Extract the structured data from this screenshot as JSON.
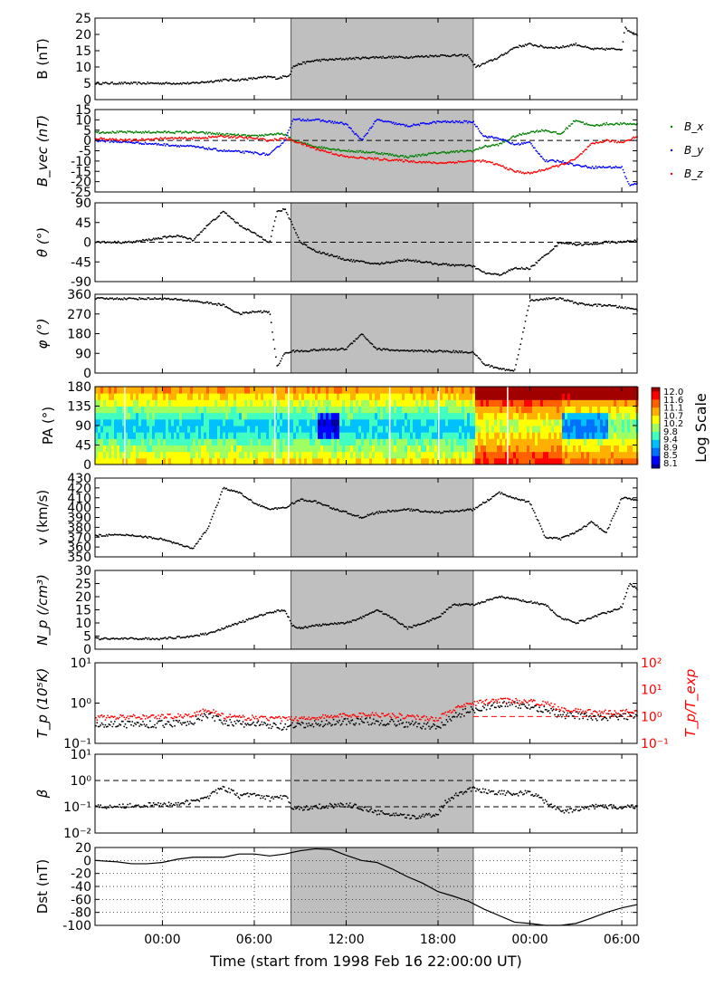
{
  "figure": {
    "xlabel": "Time (start from 1998 Feb 16 22:00:00 UT)",
    "x_start": "1998-02-16 22:00",
    "x_range_hours": [
      -2.4,
      33.0
    ],
    "x_ticks": [
      {
        "hours": 2,
        "label": "00:00"
      },
      {
        "hours": 8,
        "label": "06:00"
      },
      {
        "hours": 14,
        "label": "12:00"
      },
      {
        "hours": 20,
        "label": "18:00"
      },
      {
        "hours": 26,
        "label": "00:00"
      },
      {
        "hours": 32,
        "label": "06:00"
      }
    ],
    "shaded_interval_hours": [
      10.4,
      22.3
    ],
    "shade_color": "#bfbfbf"
  },
  "chart_data": [
    {
      "id": "B",
      "type": "scatter",
      "ylabel": "B (nT)",
      "ylim": [
        0,
        25
      ],
      "yticks": [
        0,
        5,
        10,
        15,
        20,
        25
      ],
      "series": [
        {
          "color": "#000000",
          "x": [
            -2.4,
            0,
            2,
            4,
            5,
            6,
            7,
            8,
            9,
            9.5,
            10.3,
            10.5,
            11,
            12,
            14,
            16,
            18,
            20,
            22,
            22.3,
            22.5,
            23,
            24,
            25,
            26,
            27,
            28,
            29,
            30,
            31,
            32,
            32.2,
            32.5,
            33
          ],
          "y": [
            5,
            5,
            5,
            5,
            5.5,
            6,
            6,
            6.5,
            7,
            6.5,
            7.5,
            10,
            11,
            12,
            12.5,
            13,
            13,
            13.5,
            13.5,
            11,
            10,
            11,
            13,
            16,
            17,
            16,
            16,
            17,
            15.5,
            15.5,
            15.5,
            22,
            21,
            20
          ]
        }
      ]
    },
    {
      "id": "Bvec",
      "type": "scatter",
      "ylabel": "B_vec (nT)",
      "ylim": [
        -25,
        15
      ],
      "yticks": [
        -25,
        -20,
        -15,
        -10,
        -5,
        0,
        5,
        10,
        15
      ],
      "zero_line": 0,
      "legend": "right",
      "series": [
        {
          "name": "B_x",
          "color": "#008000",
          "x": [
            -2.4,
            2,
            4,
            6,
            8,
            9,
            10,
            10.5,
            12,
            14,
            16,
            18,
            20,
            22.3,
            23,
            24,
            25,
            26,
            27,
            28,
            29,
            30,
            31,
            32,
            33
          ],
          "y": [
            4,
            4,
            4,
            3,
            2,
            3,
            3,
            0,
            -3,
            -5,
            -6,
            -8,
            -6,
            -5,
            -3,
            -2,
            2,
            4,
            5,
            3,
            10,
            7,
            8,
            8,
            8
          ]
        },
        {
          "name": "B_y",
          "color": "#0000ff",
          "x": [
            -2.4,
            0,
            2,
            4,
            6,
            8,
            9,
            10,
            10.5,
            12,
            14,
            15,
            16,
            18,
            20,
            22.3,
            23,
            24,
            25,
            26,
            27,
            28,
            29,
            30,
            31,
            32,
            32.5,
            33
          ],
          "y": [
            0,
            -1,
            -2,
            -3,
            -5,
            -6,
            -7,
            0,
            10,
            10,
            8,
            0,
            10,
            7,
            9,
            9,
            2,
            1,
            -2,
            -1,
            -10,
            -10,
            -12,
            -13,
            -13,
            -13,
            -22,
            -21
          ]
        },
        {
          "name": "B_z",
          "color": "#ff0000",
          "x": [
            -2.4,
            0,
            2,
            4,
            6,
            8,
            9,
            10,
            10.5,
            12,
            14,
            16,
            18,
            20,
            22.3,
            23,
            24,
            25,
            26,
            27,
            28,
            29,
            30,
            31,
            32,
            33
          ],
          "y": [
            1,
            0,
            1,
            1,
            2,
            1,
            0,
            1,
            0,
            -4,
            -8,
            -9,
            -10,
            -11,
            -10,
            -10,
            -12,
            -15,
            -16,
            -14,
            -12,
            -9,
            -2,
            0,
            -1,
            2
          ]
        }
      ]
    },
    {
      "id": "theta",
      "type": "scatter",
      "ylabel": "θ (°)",
      "ylim": [
        -90,
        90
      ],
      "yticks": [
        -90,
        -45,
        0,
        45,
        90
      ],
      "zero_line": 0,
      "series": [
        {
          "color": "#000000",
          "x": [
            -2.4,
            0,
            1,
            2,
            3,
            4,
            5,
            6,
            7,
            8,
            9,
            9.5,
            10,
            10.5,
            11,
            12,
            13,
            14,
            16,
            18,
            20,
            22.3,
            23,
            24,
            25,
            26,
            27,
            28,
            29,
            30,
            31,
            32,
            33
          ],
          "y": [
            0,
            0,
            5,
            10,
            15,
            5,
            40,
            70,
            40,
            20,
            0,
            70,
            75,
            40,
            0,
            -20,
            -30,
            -40,
            -50,
            -40,
            -50,
            -55,
            -70,
            -75,
            -60,
            -60,
            -30,
            0,
            -5,
            -5,
            0,
            0,
            5
          ]
        }
      ]
    },
    {
      "id": "phi",
      "type": "scatter",
      "ylabel": "φ (°)",
      "ylim": [
        0,
        360
      ],
      "yticks": [
        0,
        90,
        180,
        270,
        360
      ],
      "series": [
        {
          "color": "#000000",
          "x": [
            -2.4,
            0,
            2,
            4,
            6,
            7,
            8,
            9,
            9.5,
            10,
            10.5,
            11,
            12,
            14,
            15,
            16,
            18,
            20,
            22.3,
            22.5,
            23,
            24,
            25,
            26,
            27,
            28,
            29,
            30,
            31,
            32,
            33
          ],
          "y": [
            340,
            340,
            340,
            330,
            310,
            270,
            280,
            280,
            30,
            90,
            100,
            100,
            105,
            110,
            180,
            110,
            100,
            100,
            95,
            80,
            40,
            20,
            10,
            330,
            340,
            340,
            320,
            310,
            310,
            300,
            290
          ]
        }
      ]
    },
    {
      "id": "PA",
      "type": "heatmap",
      "ylabel": "PA (°)",
      "ylim": [
        0,
        180
      ],
      "yticks": [
        0,
        45,
        90,
        135,
        180
      ],
      "colorbar": {
        "label": "Log Scale",
        "ticks": [
          "12.0",
          "11.6",
          "11.1",
          "10.7",
          "10.2",
          "9.8",
          "9.4",
          "8.9",
          "8.5",
          "8.1"
        ]
      }
    },
    {
      "id": "v",
      "type": "scatter",
      "ylabel": "v (km/s)",
      "ylim": [
        350,
        430
      ],
      "yticks": [
        350,
        360,
        370,
        380,
        390,
        400,
        410,
        420,
        430
      ],
      "series": [
        {
          "color": "#000000",
          "x": [
            -2.4,
            0,
            2,
            4,
            5,
            6,
            7,
            8,
            9,
            10,
            11,
            12,
            13,
            14,
            15,
            16,
            18,
            20,
            22.3,
            23,
            24,
            25,
            26,
            27,
            28,
            29,
            30,
            31,
            32,
            33
          ],
          "y": [
            372,
            372,
            368,
            358,
            380,
            420,
            415,
            405,
            398,
            400,
            408,
            406,
            400,
            395,
            390,
            395,
            398,
            395,
            398,
            405,
            415,
            410,
            405,
            370,
            368,
            375,
            385,
            375,
            410,
            408
          ]
        }
      ]
    },
    {
      "id": "Np",
      "type": "scatter",
      "ylabel": "N_p (/cm³)",
      "ylim": [
        0,
        30
      ],
      "yticks": [
        0,
        5,
        10,
        15,
        20,
        25,
        30
      ],
      "series": [
        {
          "color": "#000000",
          "x": [
            -2.4,
            0,
            2,
            4,
            5,
            6,
            7,
            8,
            9,
            10,
            10.5,
            11,
            12,
            14,
            15,
            16,
            17,
            18,
            19,
            20,
            21,
            22.3,
            23,
            24,
            25,
            26,
            27,
            28,
            29,
            30,
            31,
            32,
            32.5,
            33
          ],
          "y": [
            4,
            4,
            4,
            5,
            6,
            8,
            10,
            12,
            14,
            15,
            9,
            8,
            9,
            10,
            12,
            15,
            12,
            8,
            10,
            12,
            17,
            17,
            18,
            20,
            19,
            18,
            17,
            12,
            10,
            12,
            14,
            16,
            25,
            23
          ]
        }
      ]
    },
    {
      "id": "Tp",
      "type": "scatter",
      "ylabel": "T_p (10⁵K)",
      "y_scale": "log",
      "ylim": [
        0.1,
        10
      ],
      "yticks": [
        {
          "value": 0.1,
          "label": "10⁻¹"
        },
        {
          "value": 1,
          "label": "10⁰"
        },
        {
          "value": 10,
          "label": "10¹"
        }
      ],
      "right_axis": {
        "ylabel": "T_p/T_exp",
        "color": "#ff0000",
        "ylim": [
          0.1,
          100
        ],
        "yticks": [
          {
            "value": 0.1,
            "label": "10⁻¹"
          },
          {
            "value": 1,
            "label": "10⁰"
          },
          {
            "value": 10,
            "label": "10¹"
          },
          {
            "value": 100,
            "label": "10²"
          }
        ],
        "ref_line": 1
      },
      "series": [
        {
          "axis": "left",
          "color": "#000000",
          "x": [
            -2.4,
            2,
            4,
            5,
            6,
            7,
            8,
            10,
            12,
            14,
            16,
            18,
            20,
            22.3,
            23,
            24,
            25,
            26,
            27,
            28,
            29,
            30,
            31,
            32,
            33
          ],
          "y": [
            0.3,
            0.3,
            0.35,
            0.5,
            0.35,
            0.3,
            0.3,
            0.25,
            0.3,
            0.35,
            0.35,
            0.3,
            0.25,
            0.7,
            0.8,
            0.9,
            0.9,
            0.8,
            0.7,
            0.5,
            0.5,
            0.45,
            0.45,
            0.45,
            0.5
          ]
        },
        {
          "axis": "right",
          "color": "#ff0000",
          "x": [
            -2.4,
            2,
            4,
            5,
            6,
            7,
            8,
            10,
            12,
            14,
            16,
            18,
            20,
            22.3,
            23,
            24,
            25,
            26,
            27,
            28,
            29,
            30,
            31,
            32,
            33
          ],
          "y": [
            0.9,
            1,
            1.1,
            1.8,
            1,
            0.9,
            0.9,
            0.8,
            0.9,
            1.1,
            1.2,
            1,
            0.8,
            3,
            3.5,
            4,
            3.8,
            3.5,
            3,
            2,
            1.6,
            1.5,
            1.4,
            1.5,
            1.6
          ]
        }
      ]
    },
    {
      "id": "beta",
      "type": "scatter",
      "ylabel": "β",
      "y_scale": "log",
      "ylim": [
        0.01,
        10
      ],
      "yticks": [
        {
          "value": 0.01,
          "label": "10⁻²"
        },
        {
          "value": 0.1,
          "label": "10⁻¹"
        },
        {
          "value": 1,
          "label": "10⁰"
        },
        {
          "value": 10,
          "label": "10¹"
        }
      ],
      "ref_lines": [
        1,
        0.1
      ],
      "series": [
        {
          "color": "#000000",
          "x": [
            -2.4,
            2,
            4,
            5,
            6,
            7,
            8,
            9,
            10,
            10.5,
            12,
            14,
            16,
            18,
            20,
            22.3,
            23,
            24,
            25,
            26,
            27,
            28,
            29,
            30,
            31,
            32,
            33
          ],
          "y": [
            0.1,
            0.12,
            0.15,
            0.25,
            0.5,
            0.25,
            0.3,
            0.2,
            0.25,
            0.08,
            0.1,
            0.12,
            0.06,
            0.04,
            0.05,
            0.5,
            0.4,
            0.35,
            0.3,
            0.35,
            0.15,
            0.06,
            0.08,
            0.1,
            0.1,
            0.1,
            0.1
          ]
        }
      ]
    },
    {
      "id": "Dst",
      "type": "line",
      "ylabel": "Dst (nT)",
      "ylim": [
        -100,
        20
      ],
      "yticks": [
        -100,
        -80,
        -60,
        -40,
        -20,
        0,
        20
      ],
      "grid": "dotted",
      "series": [
        {
          "color": "#000000",
          "x": [
            -2.4,
            -1,
            0,
            1,
            2,
            3,
            4,
            5,
            6,
            7,
            8,
            9,
            10,
            11,
            12,
            13,
            14,
            15,
            16,
            17,
            18,
            19,
            20,
            21,
            22,
            23,
            24,
            25,
            26,
            27,
            28,
            29,
            30,
            31,
            32,
            33
          ],
          "y": [
            0,
            -2,
            -5,
            -5,
            -3,
            2,
            5,
            5,
            5,
            10,
            10,
            7,
            10,
            15,
            18,
            17,
            8,
            0,
            -3,
            -13,
            -25,
            -35,
            -48,
            -55,
            -63,
            -75,
            -85,
            -95,
            -97,
            -100,
            -100,
            -97,
            -89,
            -80,
            -73,
            -68
          ]
        }
      ]
    }
  ]
}
